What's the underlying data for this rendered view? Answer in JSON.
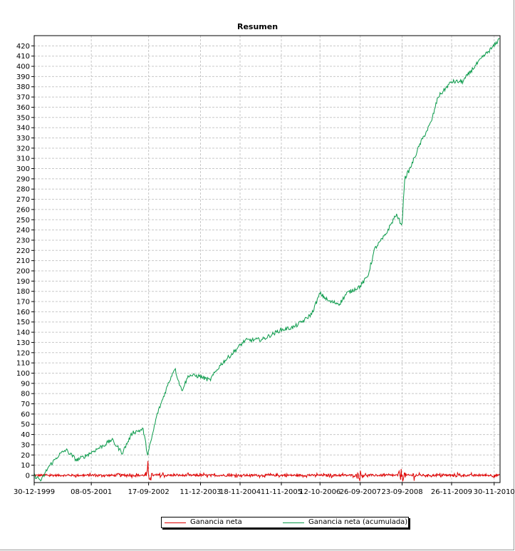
{
  "chart_data": {
    "type": "line",
    "title": "Resumen",
    "x_tick_labels": [
      "30-12-1999",
      "08-05-2001",
      "17-09-2002",
      "11-12-2003",
      "18-11-2004",
      "11-11-2005",
      "12-10-2006",
      "26-09-2007",
      "23-09-2008",
      "26-11-2009",
      "30-11-2010"
    ],
    "x_range": [
      "1999-12-30",
      "2011-01-20"
    ],
    "ylim": [
      -7,
      430
    ],
    "y_ticks": [
      0,
      10,
      20,
      30,
      40,
      50,
      60,
      70,
      80,
      90,
      100,
      110,
      120,
      130,
      140,
      150,
      160,
      170,
      180,
      190,
      200,
      210,
      220,
      230,
      240,
      250,
      260,
      270,
      280,
      290,
      300,
      310,
      320,
      330,
      340,
      350,
      360,
      370,
      380,
      390,
      400,
      410,
      420
    ],
    "grid": true,
    "legend_position": "bottom",
    "series": [
      {
        "name": "Ganancia neta",
        "color": "#e00000",
        "description_values": [
          [
            "1999-12-30",
            0
          ],
          [
            "2000-06-01",
            2
          ],
          [
            "2001-01-01",
            -1
          ],
          [
            "2001-06-01",
            3
          ],
          [
            "2002-01-01",
            4
          ],
          [
            "2002-09-17",
            18
          ],
          [
            "2003-01-01",
            5
          ],
          [
            "2004-01-01",
            2
          ],
          [
            "2005-01-01",
            2
          ],
          [
            "2006-01-01",
            3
          ],
          [
            "2007-01-01",
            3
          ],
          [
            "2007-09-26",
            12
          ],
          [
            "2008-09-23",
            20
          ],
          [
            "2009-01-01",
            6
          ],
          [
            "2010-01-01",
            4
          ],
          [
            "2010-11-30",
            5
          ]
        ]
      },
      {
        "name": "Ganancia neta (acumulada)",
        "color": "#0a9a4a",
        "values": [
          [
            "1999-12-30",
            0
          ],
          [
            "2000-03-01",
            -5
          ],
          [
            "2000-05-01",
            8
          ],
          [
            "2000-08-01",
            20
          ],
          [
            "2000-10-01",
            25
          ],
          [
            "2001-01-01",
            15
          ],
          [
            "2001-03-01",
            18
          ],
          [
            "2001-06-01",
            24
          ],
          [
            "2001-09-01",
            30
          ],
          [
            "2001-11-01",
            35
          ],
          [
            "2002-02-01",
            22
          ],
          [
            "2002-05-01",
            42
          ],
          [
            "2002-08-01",
            45
          ],
          [
            "2002-09-10",
            20
          ],
          [
            "2002-10-01",
            30
          ],
          [
            "2002-12-01",
            60
          ],
          [
            "2003-03-01",
            88
          ],
          [
            "2003-05-01",
            105
          ],
          [
            "2003-07-01",
            83
          ],
          [
            "2003-09-01",
            98
          ],
          [
            "2003-12-01",
            97
          ],
          [
            "2004-03-01",
            93
          ],
          [
            "2004-06-01",
            108
          ],
          [
            "2004-09-01",
            118
          ],
          [
            "2005-01-01",
            132
          ],
          [
            "2005-06-01",
            133
          ],
          [
            "2005-11-01",
            142
          ],
          [
            "2006-03-01",
            145
          ],
          [
            "2006-06-01",
            152
          ],
          [
            "2006-08-01",
            158
          ],
          [
            "2006-10-12",
            178
          ],
          [
            "2007-01-01",
            170
          ],
          [
            "2007-04-01",
            168
          ],
          [
            "2007-06-01",
            178
          ],
          [
            "2007-09-26",
            185
          ],
          [
            "2007-12-01",
            195
          ],
          [
            "2008-02-01",
            222
          ],
          [
            "2008-05-01",
            235
          ],
          [
            "2008-08-01",
            255
          ],
          [
            "2008-09-23",
            245
          ],
          [
            "2008-10-15",
            290
          ],
          [
            "2008-12-01",
            300
          ],
          [
            "2009-03-01",
            325
          ],
          [
            "2009-06-01",
            345
          ],
          [
            "2009-08-01",
            370
          ],
          [
            "2009-11-26",
            385
          ],
          [
            "2010-03-01",
            385
          ],
          [
            "2010-06-01",
            398
          ],
          [
            "2010-09-01",
            410
          ],
          [
            "2010-11-30",
            420
          ],
          [
            "2011-01-15",
            427
          ]
        ]
      }
    ]
  }
}
